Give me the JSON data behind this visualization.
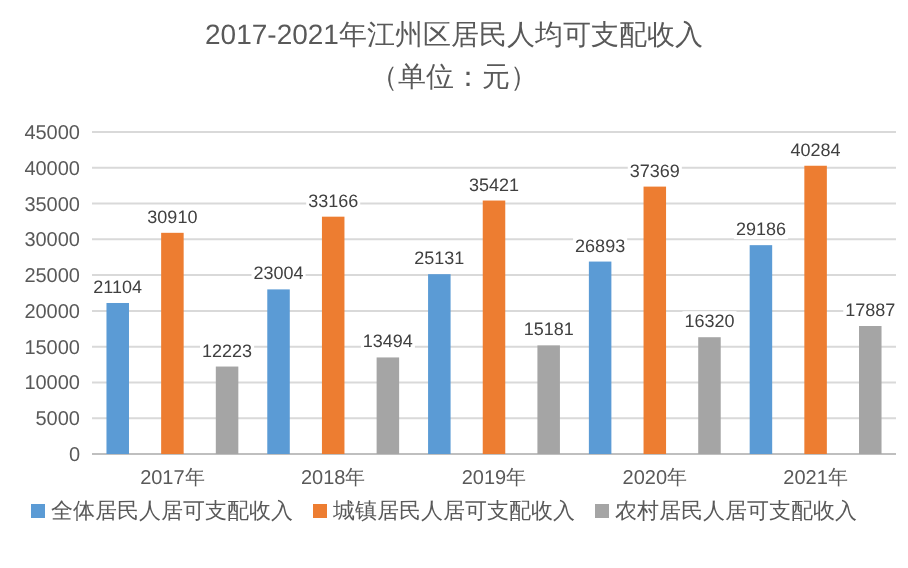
{
  "chart_data": {
    "type": "bar",
    "title": "2017-2021年江州区居民人均可支配收入",
    "subtitle": "（单位：元）",
    "categories": [
      "2017年",
      "2018年",
      "2019年",
      "2020年",
      "2021年"
    ],
    "series": [
      {
        "name": "全体居民人居可支配收入",
        "color": "#5b9bd5",
        "values": [
          21104,
          23004,
          25131,
          26893,
          29186
        ]
      },
      {
        "name": "城镇居民人居可支配收入",
        "color": "#ed7d31",
        "values": [
          30910,
          33166,
          35421,
          37369,
          40284
        ]
      },
      {
        "name": "农村居民人居可支配收入",
        "color": "#a5a5a5",
        "values": [
          12223,
          13494,
          15181,
          16320,
          17887
        ]
      }
    ],
    "ylim": [
      0,
      45000
    ],
    "yticks": [
      0,
      5000,
      10000,
      15000,
      20000,
      25000,
      30000,
      35000,
      40000,
      45000
    ],
    "grid": "y",
    "legend": "bottom",
    "data_labels": true
  }
}
